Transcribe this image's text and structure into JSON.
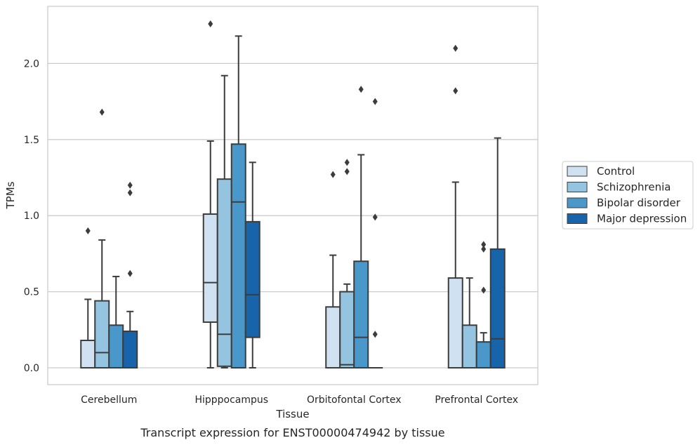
{
  "caption": "Transcript expression for ENST00000474942 by tissue",
  "chart_data": {
    "type": "boxplot",
    "xlabel": "Tissue",
    "ylabel": "TPMs",
    "ylim": [
      -0.11,
      2.38
    ],
    "yticks": [
      0.0,
      0.5,
      1.0,
      1.5,
      2.0
    ],
    "ytick_labels": [
      "0.0",
      "0.5",
      "1.0",
      "1.5",
      "2.0"
    ],
    "grid": "horizontal",
    "legend_position": "right",
    "categories": [
      "Cerebellum",
      "Hipppocampus",
      "Orbitofontal Cortex",
      "Prefrontal Cortex"
    ],
    "series": [
      {
        "name": "Control",
        "color": "#d0e1f2",
        "boxes": [
          {
            "q1": 0.0,
            "median": 0.0,
            "q3": 0.18,
            "whislo": 0.0,
            "whishi": 0.45,
            "fliers": [
              0.9
            ]
          },
          {
            "q1": 0.3,
            "median": 0.56,
            "q3": 1.01,
            "whislo": 0.0,
            "whishi": 1.49,
            "fliers": [
              2.26
            ]
          },
          {
            "q1": 0.0,
            "median": 0.0,
            "q3": 0.4,
            "whislo": 0.0,
            "whishi": 0.74,
            "fliers": [
              1.27
            ]
          },
          {
            "q1": 0.0,
            "median": 0.0,
            "q3": 0.59,
            "whislo": 0.0,
            "whishi": 1.22,
            "fliers": [
              1.82,
              2.1
            ]
          }
        ]
      },
      {
        "name": "Schizophrenia",
        "color": "#94c4df",
        "boxes": [
          {
            "q1": 0.0,
            "median": 0.1,
            "q3": 0.44,
            "whislo": 0.0,
            "whishi": 0.84,
            "fliers": [
              1.68
            ]
          },
          {
            "q1": 0.01,
            "median": 0.22,
            "q3": 1.24,
            "whislo": 0.0,
            "whishi": 1.92,
            "fliers": []
          },
          {
            "q1": 0.0,
            "median": 0.02,
            "q3": 0.5,
            "whislo": 0.0,
            "whishi": 0.55,
            "fliers": [
              1.29,
              1.35
            ]
          },
          {
            "q1": 0.0,
            "median": 0.0,
            "q3": 0.28,
            "whislo": 0.0,
            "whishi": 0.59,
            "fliers": []
          }
        ]
      },
      {
        "name": "Bipolar disorder",
        "color": "#4a98c9",
        "boxes": [
          {
            "q1": 0.0,
            "median": 0.0,
            "q3": 0.28,
            "whislo": 0.0,
            "whishi": 0.6,
            "fliers": []
          },
          {
            "q1": 0.0,
            "median": 1.09,
            "q3": 1.47,
            "whislo": 0.0,
            "whishi": 2.18,
            "fliers": []
          },
          {
            "q1": 0.0,
            "median": 0.2,
            "q3": 0.7,
            "whislo": 0.0,
            "whishi": 1.4,
            "fliers": [
              1.83
            ]
          },
          {
            "q1": 0.0,
            "median": 0.0,
            "q3": 0.17,
            "whislo": 0.0,
            "whishi": 0.23,
            "fliers": [
              0.51,
              0.78,
              0.81
            ]
          }
        ]
      },
      {
        "name": "Major depression",
        "color": "#1764ab",
        "boxes": [
          {
            "q1": 0.0,
            "median": 0.0,
            "q3": 0.24,
            "whislo": 0.0,
            "whishi": 0.37,
            "fliers": [
              0.62,
              1.15,
              1.2
            ]
          },
          {
            "q1": 0.2,
            "median": 0.48,
            "q3": 0.96,
            "whislo": 0.0,
            "whishi": 1.35,
            "fliers": []
          },
          {
            "q1": 0.0,
            "median": 0.0,
            "q3": 0.0,
            "whislo": 0.0,
            "whishi": 0.0,
            "fliers": [
              0.22,
              0.99,
              1.75
            ]
          },
          {
            "q1": 0.0,
            "median": 0.19,
            "q3": 0.78,
            "whislo": 0.0,
            "whishi": 1.51,
            "fliers": []
          }
        ]
      }
    ]
  }
}
